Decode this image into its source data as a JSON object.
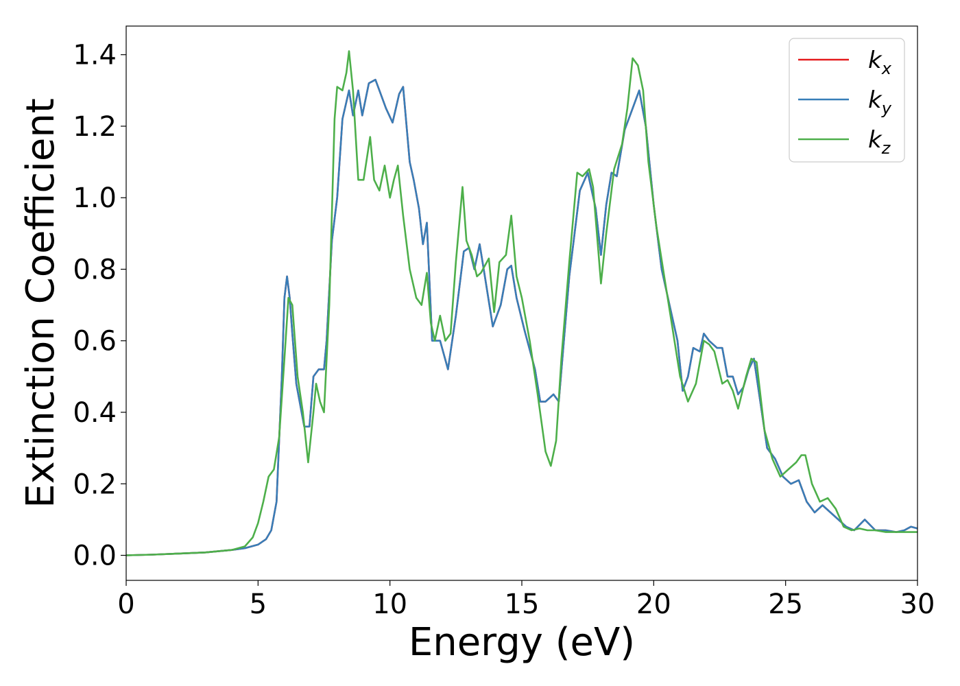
{
  "chart_data": {
    "type": "line",
    "xlabel": "Energy (eV)",
    "ylabel": "Extinction Coefficient",
    "xlim": [
      0,
      30
    ],
    "ylim": [
      -0.07,
      1.48
    ],
    "xticks": [
      "0",
      "5",
      "10",
      "15",
      "20",
      "25",
      "30"
    ],
    "yticks": [
      "0.0",
      "0.2",
      "0.4",
      "0.6",
      "0.8",
      "1.0",
      "1.2",
      "1.4"
    ],
    "xtick_values": [
      0,
      5,
      10,
      15,
      20,
      25,
      30
    ],
    "ytick_values": [
      0.0,
      0.2,
      0.4,
      0.6,
      0.8,
      1.0,
      1.2,
      1.4
    ],
    "grid": false,
    "legend_position": "top-right",
    "series": [
      {
        "name": "k_x",
        "legend_main": "k",
        "legend_sub": "x",
        "color": "#e41a1c",
        "x": [
          0,
          1,
          2,
          3,
          4,
          4.5,
          5,
          5.3,
          5.5,
          5.7,
          5.9,
          6.0,
          6.1,
          6.2,
          6.3,
          6.45,
          6.6,
          6.75,
          6.95,
          7.1,
          7.3,
          7.5,
          7.6,
          7.8,
          8.0,
          8.2,
          8.45,
          8.6,
          8.8,
          8.95,
          9.2,
          9.45,
          9.6,
          9.85,
          10.1,
          10.35,
          10.5,
          10.75,
          10.9,
          11.1,
          11.25,
          11.4,
          11.6,
          11.9,
          12.2,
          12.5,
          12.8,
          13.0,
          13.2,
          13.4,
          13.6,
          13.9,
          14.2,
          14.45,
          14.6,
          14.8,
          15.1,
          15.5,
          15.7,
          15.9,
          16.2,
          16.4,
          16.8,
          17.2,
          17.5,
          17.8,
          18.0,
          18.2,
          18.4,
          18.6,
          18.9,
          19.2,
          19.45,
          19.7,
          20.0,
          20.3,
          20.6,
          20.9,
          21.1,
          21.3,
          21.5,
          21.75,
          21.9,
          22.1,
          22.4,
          22.6,
          22.8,
          23.0,
          23.2,
          23.4,
          23.6,
          23.8,
          24.0,
          24.3,
          24.6,
          24.9,
          25.2,
          25.5,
          25.8,
          26.1,
          26.4,
          26.7,
          27.0,
          27.3,
          27.6,
          28.0,
          28.4,
          28.8,
          29.2,
          29.5,
          29.75,
          30
        ],
        "y": [
          0.0,
          0.002,
          0.005,
          0.008,
          0.015,
          0.02,
          0.03,
          0.045,
          0.07,
          0.15,
          0.5,
          0.72,
          0.78,
          0.72,
          0.62,
          0.48,
          0.42,
          0.36,
          0.36,
          0.5,
          0.52,
          0.52,
          0.6,
          0.88,
          1.0,
          1.22,
          1.3,
          1.23,
          1.3,
          1.23,
          1.32,
          1.33,
          1.3,
          1.25,
          1.21,
          1.29,
          1.31,
          1.1,
          1.05,
          0.97,
          0.87,
          0.93,
          0.6,
          0.6,
          0.52,
          0.67,
          0.85,
          0.86,
          0.8,
          0.87,
          0.78,
          0.64,
          0.7,
          0.8,
          0.81,
          0.72,
          0.63,
          0.52,
          0.43,
          0.43,
          0.45,
          0.43,
          0.78,
          1.02,
          1.07,
          0.97,
          0.84,
          0.98,
          1.07,
          1.06,
          1.19,
          1.25,
          1.3,
          1.2,
          0.98,
          0.8,
          0.7,
          0.6,
          0.46,
          0.5,
          0.58,
          0.57,
          0.62,
          0.6,
          0.58,
          0.58,
          0.5,
          0.5,
          0.45,
          0.47,
          0.52,
          0.55,
          0.45,
          0.3,
          0.27,
          0.22,
          0.2,
          0.21,
          0.15,
          0.12,
          0.14,
          0.12,
          0.1,
          0.08,
          0.07,
          0.1,
          0.07,
          0.07,
          0.065,
          0.07,
          0.08,
          0.075
        ]
      },
      {
        "name": "k_y",
        "legend_main": "k",
        "legend_sub": "y",
        "color": "#377eb8",
        "x": [
          0,
          1,
          2,
          3,
          4,
          4.5,
          5,
          5.3,
          5.5,
          5.7,
          5.9,
          6.0,
          6.1,
          6.2,
          6.3,
          6.45,
          6.6,
          6.75,
          6.95,
          7.1,
          7.3,
          7.5,
          7.6,
          7.8,
          8.0,
          8.2,
          8.45,
          8.6,
          8.8,
          8.95,
          9.2,
          9.45,
          9.6,
          9.85,
          10.1,
          10.35,
          10.5,
          10.75,
          10.9,
          11.1,
          11.25,
          11.4,
          11.6,
          11.9,
          12.2,
          12.5,
          12.8,
          13.0,
          13.2,
          13.4,
          13.6,
          13.9,
          14.2,
          14.45,
          14.6,
          14.8,
          15.1,
          15.5,
          15.7,
          15.9,
          16.2,
          16.4,
          16.8,
          17.2,
          17.5,
          17.8,
          18.0,
          18.2,
          18.4,
          18.6,
          18.9,
          19.2,
          19.45,
          19.7,
          20.0,
          20.3,
          20.6,
          20.9,
          21.1,
          21.3,
          21.5,
          21.75,
          21.9,
          22.1,
          22.4,
          22.6,
          22.8,
          23.0,
          23.2,
          23.4,
          23.6,
          23.8,
          24.0,
          24.3,
          24.6,
          24.9,
          25.2,
          25.5,
          25.8,
          26.1,
          26.4,
          26.7,
          27.0,
          27.3,
          27.6,
          28.0,
          28.4,
          28.8,
          29.2,
          29.5,
          29.75,
          30
        ],
        "y": [
          0.0,
          0.002,
          0.005,
          0.008,
          0.015,
          0.02,
          0.03,
          0.045,
          0.07,
          0.15,
          0.5,
          0.72,
          0.78,
          0.72,
          0.62,
          0.48,
          0.42,
          0.36,
          0.36,
          0.5,
          0.52,
          0.52,
          0.6,
          0.88,
          1.0,
          1.22,
          1.3,
          1.23,
          1.3,
          1.23,
          1.32,
          1.33,
          1.3,
          1.25,
          1.21,
          1.29,
          1.31,
          1.1,
          1.05,
          0.97,
          0.87,
          0.93,
          0.6,
          0.6,
          0.52,
          0.67,
          0.85,
          0.86,
          0.8,
          0.87,
          0.78,
          0.64,
          0.7,
          0.8,
          0.81,
          0.72,
          0.63,
          0.52,
          0.43,
          0.43,
          0.45,
          0.43,
          0.78,
          1.02,
          1.07,
          0.97,
          0.84,
          0.98,
          1.07,
          1.06,
          1.19,
          1.25,
          1.3,
          1.2,
          0.98,
          0.8,
          0.7,
          0.6,
          0.46,
          0.5,
          0.58,
          0.57,
          0.62,
          0.6,
          0.58,
          0.58,
          0.5,
          0.5,
          0.45,
          0.47,
          0.52,
          0.55,
          0.45,
          0.3,
          0.27,
          0.22,
          0.2,
          0.21,
          0.15,
          0.12,
          0.14,
          0.12,
          0.1,
          0.08,
          0.07,
          0.1,
          0.07,
          0.07,
          0.065,
          0.07,
          0.08,
          0.075
        ]
      },
      {
        "name": "k_z",
        "legend_main": "k",
        "legend_sub": "z",
        "color": "#4daf4a",
        "x": [
          0,
          1,
          2,
          3,
          4,
          4.5,
          4.8,
          5.0,
          5.2,
          5.4,
          5.6,
          5.8,
          6.0,
          6.15,
          6.3,
          6.5,
          6.7,
          6.9,
          7.1,
          7.2,
          7.35,
          7.5,
          7.7,
          7.9,
          8.0,
          8.2,
          8.35,
          8.45,
          8.6,
          8.8,
          9.0,
          9.25,
          9.4,
          9.6,
          9.8,
          10.0,
          10.15,
          10.3,
          10.5,
          10.75,
          11.0,
          11.2,
          11.4,
          11.55,
          11.7,
          11.9,
          12.1,
          12.3,
          12.5,
          12.75,
          12.9,
          13.1,
          13.3,
          13.45,
          13.6,
          13.75,
          13.95,
          14.15,
          14.4,
          14.6,
          14.8,
          15.0,
          15.3,
          15.6,
          15.9,
          16.1,
          16.3,
          16.5,
          16.8,
          17.1,
          17.3,
          17.55,
          17.7,
          17.9,
          18.0,
          18.2,
          18.5,
          18.8,
          19.0,
          19.2,
          19.4,
          19.6,
          19.8,
          20.1,
          20.4,
          20.7,
          21.0,
          21.3,
          21.6,
          21.9,
          22.1,
          22.3,
          22.6,
          22.8,
          23.0,
          23.2,
          23.5,
          23.7,
          23.9,
          24.2,
          24.5,
          24.8,
          25.1,
          25.4,
          25.6,
          25.75,
          26.0,
          26.3,
          26.6,
          26.9,
          27.2,
          27.5,
          27.8,
          28.1,
          28.4,
          28.8,
          29.2,
          29.6,
          30
        ],
        "y": [
          0.0,
          0.002,
          0.005,
          0.008,
          0.015,
          0.025,
          0.05,
          0.09,
          0.15,
          0.22,
          0.24,
          0.33,
          0.55,
          0.72,
          0.7,
          0.5,
          0.4,
          0.26,
          0.4,
          0.48,
          0.43,
          0.4,
          0.7,
          1.22,
          1.31,
          1.3,
          1.35,
          1.41,
          1.3,
          1.05,
          1.05,
          1.17,
          1.05,
          1.02,
          1.09,
          1.0,
          1.05,
          1.09,
          0.95,
          0.8,
          0.72,
          0.7,
          0.79,
          0.65,
          0.6,
          0.67,
          0.6,
          0.62,
          0.82,
          1.03,
          0.88,
          0.84,
          0.78,
          0.79,
          0.81,
          0.83,
          0.68,
          0.82,
          0.84,
          0.95,
          0.78,
          0.72,
          0.6,
          0.45,
          0.29,
          0.25,
          0.32,
          0.55,
          0.82,
          1.07,
          1.06,
          1.08,
          1.03,
          0.85,
          0.76,
          0.9,
          1.08,
          1.15,
          1.25,
          1.39,
          1.37,
          1.3,
          1.1,
          0.92,
          0.78,
          0.64,
          0.5,
          0.43,
          0.48,
          0.6,
          0.59,
          0.57,
          0.48,
          0.49,
          0.46,
          0.41,
          0.5,
          0.55,
          0.54,
          0.35,
          0.27,
          0.22,
          0.24,
          0.26,
          0.28,
          0.28,
          0.2,
          0.15,
          0.16,
          0.13,
          0.08,
          0.07,
          0.075,
          0.07,
          0.07,
          0.065,
          0.065,
          0.065,
          0.065
        ]
      }
    ]
  }
}
